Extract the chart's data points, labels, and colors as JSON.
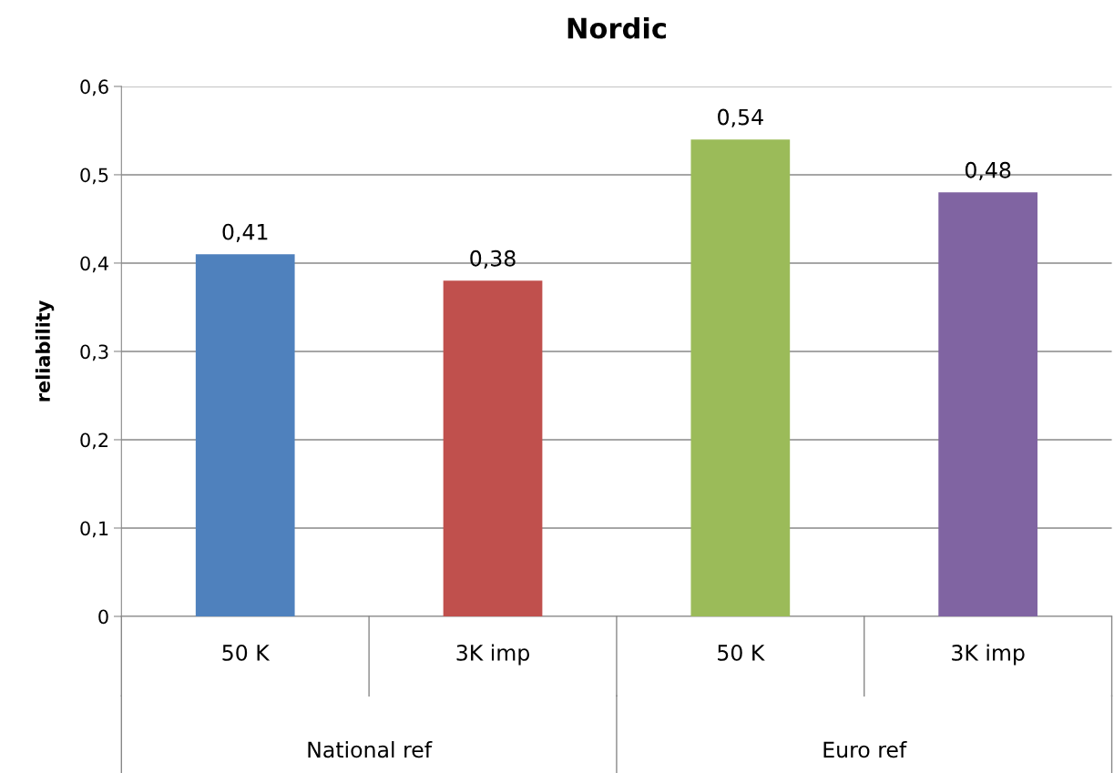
{
  "chart_data": {
    "type": "bar",
    "title": "Nordic",
    "ylabel": "reliability",
    "categories": [
      "50 K",
      "3K imp",
      "50 K",
      "3K imp"
    ],
    "values": [
      0.41,
      0.38,
      0.54,
      0.48
    ],
    "colors": [
      "#4f81bd",
      "#c0504d",
      "#9bbb59",
      "#8064a2"
    ],
    "ylim": [
      0,
      0.6
    ],
    "yticks": [
      {
        "value": 0,
        "label": "0"
      },
      {
        "value": 0.1,
        "label": "0,1"
      },
      {
        "value": 0.2,
        "label": "0,2"
      },
      {
        "value": 0.3,
        "label": "0,3"
      },
      {
        "value": 0.4,
        "label": "0,4"
      },
      {
        "value": 0.5,
        "label": "0,5"
      },
      {
        "value": 0.6,
        "label": "0,6"
      }
    ],
    "value_labels": [
      "0,41",
      "0,38",
      "0,54",
      "0,48"
    ],
    "annotations": [
      "National ref",
      "Euro ref"
    ],
    "grid": "y",
    "legend": false
  }
}
